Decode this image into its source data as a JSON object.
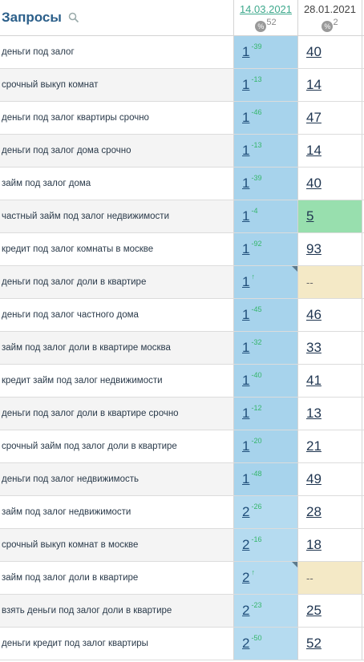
{
  "header": {
    "title": "Запросы",
    "date1": "14.03.2021",
    "date1_count": "52",
    "date2": "28.01.2021",
    "date2_count": "2",
    "pct_symbol": "%"
  },
  "rows": [
    {
      "query": "деньги под залог",
      "p1": "1",
      "d1": "-39",
      "p2": "40",
      "tone": "top",
      "corner": false,
      "bg2": ""
    },
    {
      "query": "срочный выкуп комнат",
      "p1": "1",
      "d1": "-13",
      "p2": "14",
      "tone": "top",
      "corner": false,
      "bg2": ""
    },
    {
      "query": "деньги под залог квартиры срочно",
      "p1": "1",
      "d1": "-46",
      "p2": "47",
      "tone": "top",
      "corner": false,
      "bg2": ""
    },
    {
      "query": "деньги под залог дома срочно",
      "p1": "1",
      "d1": "-13",
      "p2": "14",
      "tone": "top",
      "corner": false,
      "bg2": ""
    },
    {
      "query": "займ под залог дома",
      "p1": "1",
      "d1": "-39",
      "p2": "40",
      "tone": "top",
      "corner": false,
      "bg2": ""
    },
    {
      "query": "частный займ под залог недвижимости",
      "p1": "1",
      "d1": "-4",
      "p2": "5",
      "tone": "top",
      "corner": false,
      "bg2": "green"
    },
    {
      "query": "кредит под залог комнаты в москве",
      "p1": "1",
      "d1": "-92",
      "p2": "93",
      "tone": "top",
      "corner": false,
      "bg2": ""
    },
    {
      "query": "деньги под залог доли в квартире",
      "p1": "1",
      "d1": "↑",
      "p2": "--",
      "tone": "top",
      "corner": true,
      "bg2": "beige"
    },
    {
      "query": "деньги под залог частного дома",
      "p1": "1",
      "d1": "-45",
      "p2": "46",
      "tone": "top",
      "corner": false,
      "bg2": ""
    },
    {
      "query": "займ под залог доли в квартире москва",
      "p1": "1",
      "d1": "-32",
      "p2": "33",
      "tone": "top",
      "corner": false,
      "bg2": ""
    },
    {
      "query": "кредит займ под залог недвижимости",
      "p1": "1",
      "d1": "-40",
      "p2": "41",
      "tone": "top",
      "corner": false,
      "bg2": ""
    },
    {
      "query": "деньги под залог доли в квартире срочно",
      "p1": "1",
      "d1": "-12",
      "p2": "13",
      "tone": "top",
      "corner": false,
      "bg2": ""
    },
    {
      "query": "срочный займ под залог доли в квартире",
      "p1": "1",
      "d1": "-20",
      "p2": "21",
      "tone": "top",
      "corner": false,
      "bg2": ""
    },
    {
      "query": "деньги под залог недвижимость",
      "p1": "1",
      "d1": "-48",
      "p2": "49",
      "tone": "top",
      "corner": false,
      "bg2": ""
    },
    {
      "query": "займ под залог недвижимости",
      "p1": "2",
      "d1": "-26",
      "p2": "28",
      "tone": "mid",
      "corner": false,
      "bg2": ""
    },
    {
      "query": "срочный выкуп комнат в москве",
      "p1": "2",
      "d1": "-16",
      "p2": "18",
      "tone": "mid",
      "corner": false,
      "bg2": ""
    },
    {
      "query": "займ под залог доли в квартире",
      "p1": "2",
      "d1": "↑",
      "p2": "--",
      "tone": "mid",
      "corner": true,
      "bg2": "beige"
    },
    {
      "query": "взять деньги под залог доли в квартире",
      "p1": "2",
      "d1": "-23",
      "p2": "25",
      "tone": "mid",
      "corner": false,
      "bg2": ""
    },
    {
      "query": "деньги кредит под залог квартиры",
      "p1": "2",
      "d1": "-50",
      "p2": "52",
      "tone": "mid",
      "corner": false,
      "bg2": ""
    }
  ],
  "icons": {
    "search": "magnifier-icon",
    "percent": "percent-icon",
    "corner": "triangle-flag-icon"
  }
}
